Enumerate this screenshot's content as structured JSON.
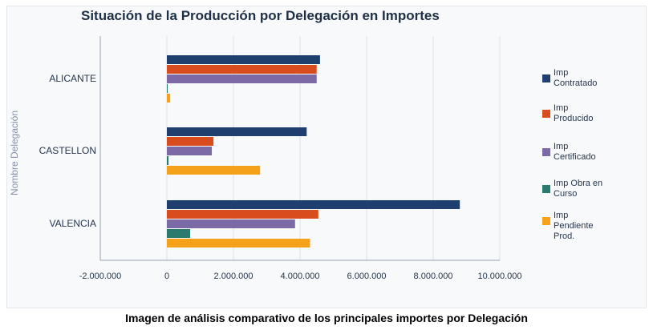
{
  "caption": "Imagen de análisis comparativo de los principales importes por Delegación",
  "chart_data": {
    "type": "bar",
    "orientation": "horizontal",
    "title": "Situación de la Producción por Delegación en Importes",
    "ylabel": "Nombre Delegación",
    "xlabel": "",
    "categories": [
      "ALICANTE",
      "CASTELLON",
      "VALENCIA"
    ],
    "series": [
      {
        "name": "Imp Contratado",
        "color": "#1f3f6e",
        "values": [
          4600000,
          4200000,
          8800000
        ]
      },
      {
        "name": "Imp Producido",
        "color": "#d94c1e",
        "values": [
          4500000,
          1400000,
          4550000
        ]
      },
      {
        "name": "Imp Certificado",
        "color": "#7b6aa6",
        "values": [
          4500000,
          1350000,
          3850000
        ]
      },
      {
        "name": "Imp Obra en Curso",
        "color": "#2a7a6e",
        "values": [
          0,
          50000,
          700000
        ]
      },
      {
        "name": "Imp Pendiente Prod.",
        "color": "#f5a21a",
        "values": [
          100000,
          2800000,
          4300000
        ]
      }
    ],
    "xlim": [
      -2000000,
      10000000
    ],
    "x_ticks": [
      -2000000,
      0,
      2000000,
      4000000,
      6000000,
      8000000,
      10000000
    ],
    "x_tick_labels": [
      "-2.000.000",
      "0",
      "2.000.000",
      "4.000.000",
      "6.000.000",
      "8.000.000",
      "10.000.000"
    ],
    "grid": true,
    "legend_position": "right",
    "legend_labels": [
      [
        "Imp",
        "Contratado"
      ],
      [
        "Imp",
        "Producido"
      ],
      [
        "Imp",
        "Certificado"
      ],
      [
        "Imp Obra en",
        "Curso"
      ],
      [
        "Imp",
        "Pendiente",
        "Prod."
      ]
    ]
  }
}
